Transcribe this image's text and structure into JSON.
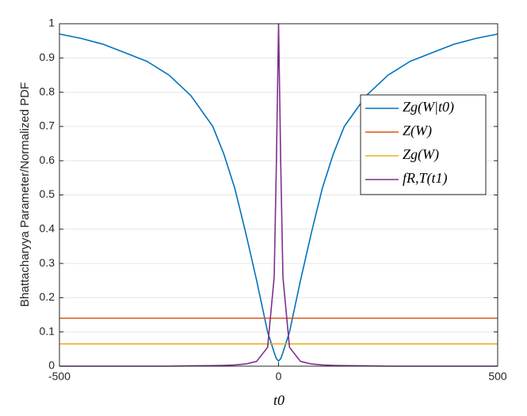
{
  "chart_data": {
    "type": "line",
    "xlabel": "t0",
    "ylabel": "Bhattacharyya Parameter/Normalized PDF",
    "x": [
      -500,
      -450,
      -400,
      -350,
      -300,
      -250,
      -200,
      -150,
      -125,
      -100,
      -75,
      -50,
      -25,
      -10,
      -5,
      0,
      5,
      10,
      25,
      50,
      75,
      100,
      125,
      150,
      200,
      250,
      300,
      350,
      400,
      450,
      500
    ],
    "series": [
      {
        "name": "Zg(W|t0)",
        "color": "#0072BD",
        "values": [
          0.97,
          0.957,
          0.94,
          0.915,
          0.89,
          0.85,
          0.79,
          0.7,
          0.62,
          0.52,
          0.39,
          0.25,
          0.1,
          0.04,
          0.022,
          0.015,
          0.022,
          0.04,
          0.1,
          0.25,
          0.39,
          0.52,
          0.62,
          0.7,
          0.79,
          0.85,
          0.89,
          0.915,
          0.94,
          0.957,
          0.97
        ]
      },
      {
        "name": "Z(W)",
        "color": "#D95319",
        "values": [
          0.14,
          0.14,
          0.14,
          0.14,
          0.14,
          0.14,
          0.14,
          0.14,
          0.14,
          0.14,
          0.14,
          0.14,
          0.14,
          0.14,
          0.14,
          0.14,
          0.14,
          0.14,
          0.14,
          0.14,
          0.14,
          0.14,
          0.14,
          0.14,
          0.14,
          0.14,
          0.14,
          0.14,
          0.14,
          0.14,
          0.14
        ]
      },
      {
        "name": "Zg(W)",
        "color": "#EDB120",
        "values": [
          0.065,
          0.065,
          0.065,
          0.065,
          0.065,
          0.065,
          0.065,
          0.065,
          0.065,
          0.065,
          0.065,
          0.065,
          0.065,
          0.065,
          0.065,
          0.065,
          0.065,
          0.065,
          0.065,
          0.065,
          0.065,
          0.065,
          0.065,
          0.065,
          0.065,
          0.065,
          0.065,
          0.065,
          0.065,
          0.065,
          0.065
        ]
      },
      {
        "name": "fR,T(t1)",
        "color": "#7E2F8E",
        "values": [
          0,
          0,
          0,
          0,
          0,
          0,
          0.001,
          0.0016,
          0.0023,
          0.0036,
          0.0064,
          0.014,
          0.055,
          0.26,
          0.59,
          1,
          0.59,
          0.26,
          0.055,
          0.014,
          0.0064,
          0.0036,
          0.0023,
          0.0016,
          0.001,
          0,
          0,
          0,
          0,
          0,
          0
        ]
      }
    ],
    "xlim": [
      -500,
      500
    ],
    "xticks": [
      -500,
      0,
      500
    ],
    "ylim": [
      0,
      1
    ],
    "yticks": [
      0,
      0.1,
      0.2,
      0.3,
      0.4,
      0.5,
      0.6,
      0.7,
      0.8,
      0.9,
      1
    ],
    "grid": true,
    "legend": "upper right"
  }
}
